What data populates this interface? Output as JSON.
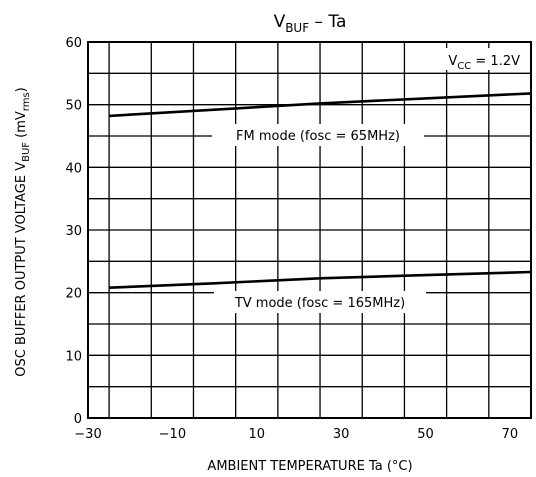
{
  "chart_data": {
    "type": "line",
    "title": {
      "main": "V",
      "sub": "BUF",
      "rest": " – Ta"
    },
    "xlabel": "AMBIENT TEMPERATURE    Ta    (°C)",
    "ylabel": {
      "main": "OSC BUFFER OUTPUT VOLTAGE    V",
      "sub": "BUF",
      "units_a": "    (mV",
      "units_sub": "rms",
      "units_b": ")"
    },
    "xlim": [
      -30,
      75
    ],
    "ylim": [
      0,
      60
    ],
    "x_ticks": [
      "−30",
      "−10",
      "10",
      "30",
      "50",
      "70"
    ],
    "x_tick_values": [
      -30,
      -10,
      10,
      30,
      50,
      70
    ],
    "y_ticks": [
      "0",
      "10",
      "20",
      "30",
      "40",
      "50",
      "60"
    ],
    "y_tick_values": [
      0,
      10,
      20,
      30,
      40,
      50,
      60
    ],
    "grid": true,
    "condition": {
      "main": "V",
      "sub": "CC",
      "rest": " = 1.2V"
    },
    "series": [
      {
        "name": "FM mode (fosc = 65MHz)",
        "x": [
          -25,
          0,
          25,
          50,
          75
        ],
        "y": [
          48.2,
          49.2,
          50.2,
          51.0,
          51.8
        ]
      },
      {
        "name": "TV mode (fosc = 165MHz)",
        "x": [
          -25,
          0,
          25,
          50,
          75
        ],
        "y": [
          20.8,
          21.5,
          22.3,
          22.8,
          23.3
        ]
      }
    ]
  }
}
